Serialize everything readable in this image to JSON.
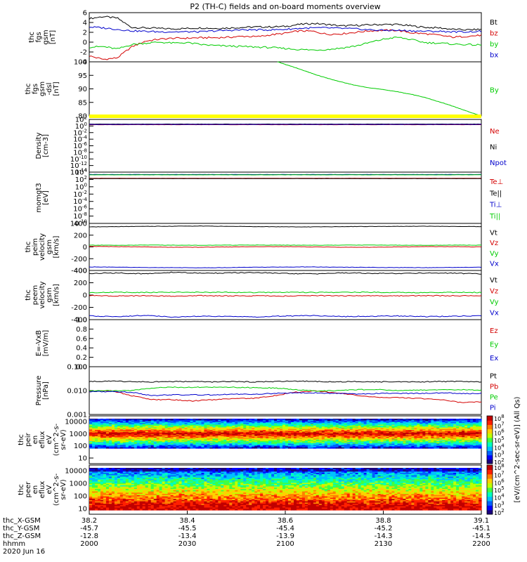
{
  "chart_data": {
    "type": "line",
    "title": "P2 (TH-C) fields and on-board moments overview",
    "colorbar": {
      "label": "[eV/(cm^2-sec-sr-eV)] (All Qs)",
      "labels": [
        "10^8",
        "10^7",
        "10^6",
        "10^5",
        "10^4",
        "10^3",
        "10^2"
      ]
    },
    "panels": [
      {
        "id": "fgs",
        "ylabel": [
          "thc",
          "fgs",
          "gsm",
          "[nT]"
        ],
        "yticks": [
          "6",
          "4",
          "2",
          "0",
          "-2",
          "-4"
        ],
        "ylim": [
          -4,
          6
        ],
        "series": [
          {
            "name": "Bt",
            "color": "#000000",
            "values": [
              4.8,
              5.2,
              4.9,
              3.0,
              2.9,
              2.8,
              2.7,
              2.8,
              2.9,
              2.8,
              2.9,
              3.0,
              3.1,
              3.1,
              3.2,
              3.6,
              3.8,
              3.6,
              3.3,
              3.4,
              3.5,
              3.6,
              3.6,
              3.3,
              3.0,
              2.9,
              2.6,
              2.5,
              2.6
            ]
          },
          {
            "name": "bz",
            "color": "#d40000",
            "values": [
              -2.8,
              -3.5,
              -3.2,
              -1.0,
              0.2,
              0.6,
              0.8,
              0.8,
              0.9,
              0.9,
              1.0,
              1.2,
              1.1,
              1.5,
              1.8,
              2.3,
              2.2,
              1.6,
              1.7,
              2.0,
              2.3,
              2.4,
              2.4,
              1.9,
              1.7,
              1.4,
              1.0,
              1.2,
              1.4
            ]
          },
          {
            "name": "by",
            "color": "#00cc00",
            "values": [
              -1.0,
              -0.9,
              -1.4,
              -0.5,
              -0.2,
              0.0,
              -0.2,
              -0.1,
              -0.5,
              -0.7,
              -0.8,
              -0.9,
              -1.0,
              -1.1,
              -1.3,
              -1.5,
              -1.6,
              -1.5,
              -1.2,
              -0.8,
              -0.1,
              0.6,
              1.0,
              0.5,
              -0.1,
              -0.2,
              -0.4,
              -0.5,
              -0.6
            ]
          },
          {
            "name": "bx",
            "color": "#0000cc",
            "values": [
              3.1,
              2.9,
              2.6,
              2.3,
              2.2,
              2.1,
              2.1,
              2.1,
              2.1,
              2.3,
              2.4,
              2.5,
              2.5,
              2.5,
              2.6,
              2.8,
              2.9,
              2.9,
              2.8,
              2.7,
              2.5,
              2.4,
              2.4,
              2.3,
              2.2,
              2.2,
              2.1,
              2.1,
              2.2
            ]
          }
        ]
      },
      {
        "id": "fgs-dsl",
        "ylabel": [
          "thc",
          "fgs",
          "gsm",
          "-dsl",
          "[nT]"
        ],
        "yticks": [
          "100",
          "95",
          "90",
          "85",
          "80"
        ],
        "ylim": [
          76,
          100
        ],
        "series": [
          {
            "name": "By",
            "color": "#00cc00",
            "x_start": 0.48,
            "values": [
              100,
              98.6,
              97.2,
              95.7,
              94.2,
              92.9,
              91.7,
              90.6,
              89.6,
              88.8,
              88.2,
              87.6,
              87.0,
              86.2,
              85.4,
              84.4,
              83.1,
              81.8,
              80.4,
              78.9,
              77.4,
              76.0
            ]
          }
        ]
      },
      {
        "id": "density",
        "ylabel": [
          "Density",
          "[cm-3]"
        ],
        "yticks": [
          "10^2",
          "10^0",
          "10^-2",
          "10^-4",
          "10^-6",
          "10^-8",
          "10^-10",
          "10^-12",
          "10^-14"
        ],
        "ylim": [
          -15,
          2
        ],
        "series": [
          {
            "name": "Ne",
            "color": "#d40000",
            "values": [
              0.3,
              0.3,
              0.3,
              0.3,
              0.3,
              0.3
            ]
          },
          {
            "name": "Ni",
            "color": "#000000",
            "values": [
              0.5,
              0.5,
              0.5,
              0.5,
              0.5,
              0.5
            ]
          },
          {
            "name": "Npot",
            "color": "#0000cc",
            "values": [
              0.4,
              0.4,
              0.4,
              0.4,
              0.4,
              0.4
            ]
          }
        ]
      },
      {
        "id": "temperature",
        "ylabel": [
          "momgt3",
          "[eV]"
        ],
        "yticks": [
          "10^4",
          "10^2",
          "10^0",
          "10^-2",
          "10^-4",
          "10^-6",
          "10^-8",
          "10^-10"
        ],
        "ylim": [
          -11,
          4
        ],
        "series": [
          {
            "name": "Te⊥",
            "color": "#d40000",
            "values": [
              2.2,
              2.2,
              2.2,
              2.2
            ]
          },
          {
            "name": "Te||",
            "color": "#000000",
            "values": [
              2.1,
              2.1,
              2.1,
              2.1
            ]
          },
          {
            "name": "Ti⊥",
            "color": "#0000cc",
            "values": [
              3.3,
              3.3,
              3.3,
              3.3
            ]
          },
          {
            "name": "Ti||",
            "color": "#00cc00",
            "values": [
              3.2,
              3.2,
              3.2,
              3.2
            ]
          }
        ]
      },
      {
        "id": "peim",
        "ylabel": [
          "thc",
          "peim",
          "velocity",
          "gsm",
          "[km/s]"
        ],
        "yticks": [
          "400",
          "200",
          "0",
          "-200",
          "-400"
        ],
        "ylim": [
          -400,
          400
        ],
        "series": [
          {
            "name": "Vt",
            "color": "#000000",
            "values": [
              340,
              345,
              350,
              352,
              355,
              350,
              345,
              342,
              340,
              345,
              348,
              350,
              352,
              348,
              345
            ]
          },
          {
            "name": "Vz",
            "color": "#d40000",
            "values": [
              10,
              5,
              0,
              -5,
              -5,
              0,
              5,
              5,
              0,
              -5,
              -5,
              0,
              5,
              5,
              0
            ]
          },
          {
            "name": "Vy",
            "color": "#00cc00",
            "values": [
              30,
              28,
              32,
              30,
              28,
              30,
              32,
              30,
              28,
              30,
              32,
              30,
              28,
              30,
              30
            ]
          },
          {
            "name": "Vx",
            "color": "#0000cc",
            "values": [
              -340,
              -345,
              -350,
              -352,
              -355,
              -350,
              -345,
              -342,
              -340,
              -345,
              -348,
              -350,
              -352,
              -348,
              -345
            ]
          }
        ]
      },
      {
        "id": "peem",
        "ylabel": [
          "thc",
          "peem",
          "velocity",
          "gsm",
          "[km/s]"
        ],
        "yticks": [
          "400",
          "200",
          "0",
          "-200",
          "-400"
        ],
        "ylim": [
          -400,
          400
        ],
        "series": [
          {
            "name": "Vt",
            "color": "#000000",
            "values": [
              350,
              360,
              345,
              370,
              355,
              360,
              365,
              350,
              345,
              360,
              355,
              350,
              360,
              355,
              345
            ]
          },
          {
            "name": "Vz",
            "color": "#d40000",
            "values": [
              -10,
              -15,
              -12,
              -18,
              -10,
              -14,
              -12,
              -16,
              -10,
              -12,
              -14,
              -12,
              -10,
              -12,
              -14
            ]
          },
          {
            "name": "Vy",
            "color": "#00cc00",
            "values": [
              40,
              45,
              42,
              48,
              44,
              46,
              40,
              45,
              42,
              44,
              46,
              42,
              40,
              44,
              42
            ]
          },
          {
            "name": "Vx",
            "color": "#0000cc",
            "values": [
              -340,
              -350,
              -330,
              -360,
              -345,
              -350,
              -355,
              -340,
              -335,
              -350,
              -345,
              -340,
              -350,
              -345,
              -335
            ]
          }
        ]
      },
      {
        "id": "efield",
        "ylabel": [
          "E=-VxB",
          "[mV/m]"
        ],
        "yticks": [
          "1.0",
          "0.8",
          "0.6",
          "0.4",
          "0.2",
          "0.0"
        ],
        "ylim": [
          0,
          1
        ],
        "series": [
          {
            "name": "Ez",
            "color": "#d40000",
            "values": []
          },
          {
            "name": "Ey",
            "color": "#00cc00",
            "values": []
          },
          {
            "name": "Ex",
            "color": "#0000cc",
            "values": []
          }
        ]
      },
      {
        "id": "pressure",
        "ylabel": [
          "Pressure",
          "[nPa]"
        ],
        "yticks": [
          "0.100",
          "0.010",
          "0.001"
        ],
        "ylim": [
          -3.05,
          -0.95
        ],
        "series": [
          {
            "name": "Pt",
            "color": "#000000",
            "values": [
              0.025,
              0.026,
              0.025,
              0.024,
              0.025,
              0.025,
              0.024,
              0.025,
              0.024,
              0.025,
              0.026,
              0.025,
              0.024,
              0.025,
              0.024,
              0.025,
              0.024,
              0.025,
              0.025,
              0.024
            ]
          },
          {
            "name": "Pb",
            "color": "#d40000",
            "values": [
              0.009,
              0.01,
              0.006,
              0.004,
              0.004,
              0.0035,
              0.004,
              0.0045,
              0.0045,
              0.006,
              0.0085,
              0.0095,
              0.008,
              0.006,
              0.005,
              0.005,
              0.0045,
              0.004,
              0.003,
              0.0032
            ]
          },
          {
            "name": "Pe",
            "color": "#00cc00",
            "values": [
              0.01,
              0.01,
              0.01,
              0.013,
              0.014,
              0.014,
              0.014,
              0.014,
              0.0135,
              0.013,
              0.011,
              0.0095,
              0.01,
              0.011,
              0.011,
              0.01,
              0.0105,
              0.011,
              0.011,
              0.0105
            ]
          },
          {
            "name": "Pi",
            "color": "#0000cc",
            "values": [
              0.009,
              0.009,
              0.0085,
              0.006,
              0.0065,
              0.0065,
              0.0065,
              0.007,
              0.007,
              0.0075,
              0.008,
              0.008,
              0.0075,
              0.007,
              0.0075,
              0.0075,
              0.0075,
              0.008,
              0.0075,
              0.0075
            ]
          }
        ]
      },
      {
        "id": "peir",
        "ylabel": [
          "thc",
          "peir",
          "en",
          "eflux",
          "eV",
          "(cm^2-s-",
          "sr-eV)"
        ],
        "yticks": [
          "10000",
          "1000",
          "100",
          "10"
        ]
      },
      {
        "id": "peer",
        "ylabel": [
          "thc",
          "peer",
          "en",
          "eflux",
          "eV",
          "(cm^2-s-",
          "sr-eV)"
        ],
        "yticks": [
          "10000",
          "1000",
          "100",
          "10"
        ]
      }
    ],
    "xaxis": {
      "row_labels": [
        "thc_X-GSM",
        "thc_Y-GSM",
        "thc_Z-GSM",
        "hhmm",
        "2020 Jun 16"
      ],
      "ticks": [
        {
          "x": "38.2",
          "y": "-45.7",
          "z": "-12.8",
          "t": "2000"
        },
        {
          "x": "38.4",
          "y": "-45.5",
          "z": "-13.4",
          "t": "2030"
        },
        {
          "x": "38.6",
          "y": "-45.4",
          "z": "-13.9",
          "t": "2100"
        },
        {
          "x": "38.8",
          "y": "-45.2",
          "z": "-14.3",
          "t": "2130"
        },
        {
          "x": "39.1",
          "y": "-45.1",
          "z": "-14.5",
          "t": "2200"
        }
      ]
    }
  }
}
